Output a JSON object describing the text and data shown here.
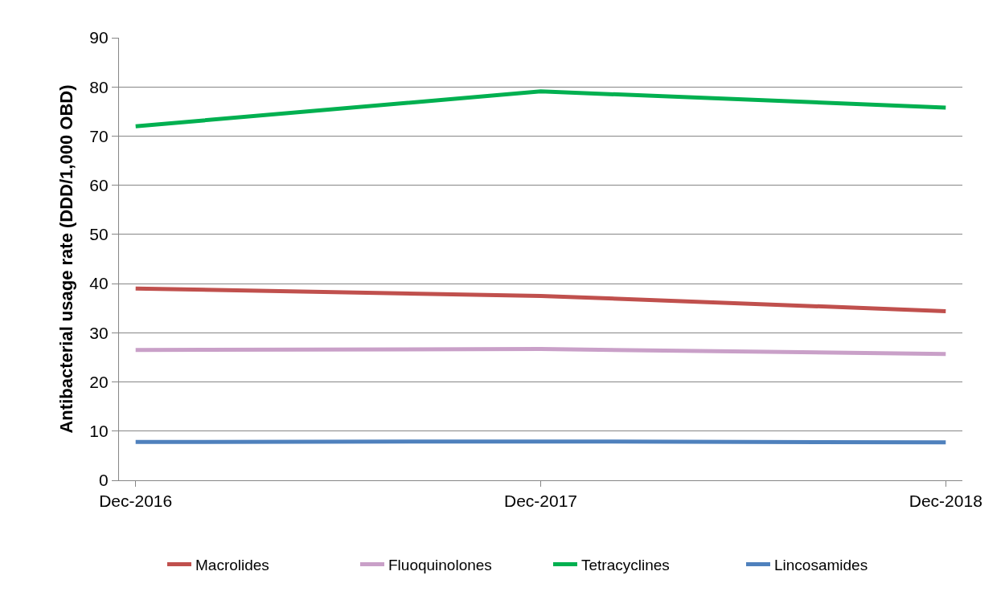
{
  "chart_data": {
    "type": "line",
    "ylabel": "Antibacterial usage rate (DDD/1,000 OBD)",
    "x": [
      "2016-12",
      "2017-12",
      "2018-12"
    ],
    "xlim": [
      "2016-11-16",
      "2018-12-16"
    ],
    "xticks": [
      {
        "value": "2016-12",
        "label": "Dec-2016"
      },
      {
        "value": "2017-12",
        "label": "Dec-2017"
      },
      {
        "value": "2018-12",
        "label": "Dec-2018"
      }
    ],
    "ylim": [
      0,
      90
    ],
    "yticks": [
      0,
      10,
      20,
      30,
      40,
      50,
      60,
      70,
      80,
      90
    ],
    "grid": "y",
    "legend": "bottom",
    "series": [
      {
        "name": "Macrolides",
        "color": "#c0504d",
        "values": [
          39.0,
          37.5,
          34.4
        ]
      },
      {
        "name": "Fluoquinolones",
        "color": "#c9a0c8",
        "values": [
          26.5,
          26.7,
          25.7
        ]
      },
      {
        "name": "Tetracyclines",
        "color": "#00b050",
        "values": [
          72.0,
          79.1,
          75.8
        ]
      },
      {
        "name": "Lincosamides",
        "color": "#4f81bd",
        "values": [
          7.8,
          7.9,
          7.7
        ]
      }
    ]
  }
}
